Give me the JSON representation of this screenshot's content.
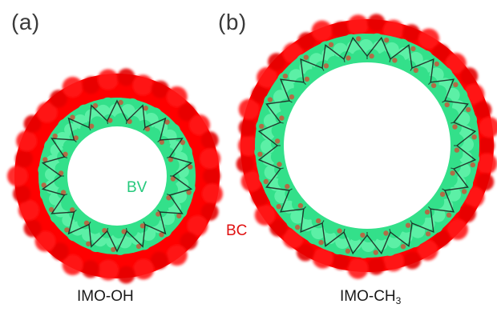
{
  "panels": [
    {
      "label": "(a)",
      "caption": "IMO-OH",
      "inner_tag": "BV"
    },
    {
      "label": "(b)",
      "caption_main": "IMO-CH",
      "caption_sub": "3",
      "outer_tag": "BC"
    }
  ],
  "colors": {
    "outer_shell": "#ff0000",
    "inner_shell": "#33e08a",
    "bond": "#1a1a1a",
    "background": "#ffffff",
    "bv_label": "#25c97c",
    "bc_label": "#e01010"
  }
}
